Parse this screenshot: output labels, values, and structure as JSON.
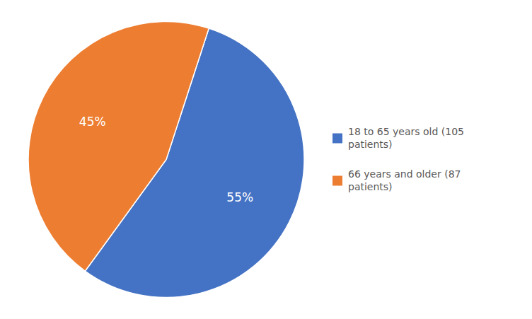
{
  "chart_data": {
    "type": "pie",
    "categories": [
      "18 to 65 years old (105\npatients)",
      "66 years and older (87\npatients)"
    ],
    "values": [
      55,
      45
    ],
    "value_labels": [
      "55%",
      "45%"
    ],
    "colors": [
      "#4472c4",
      "#ed7d31"
    ],
    "data_labels": true,
    "legend": "right"
  }
}
